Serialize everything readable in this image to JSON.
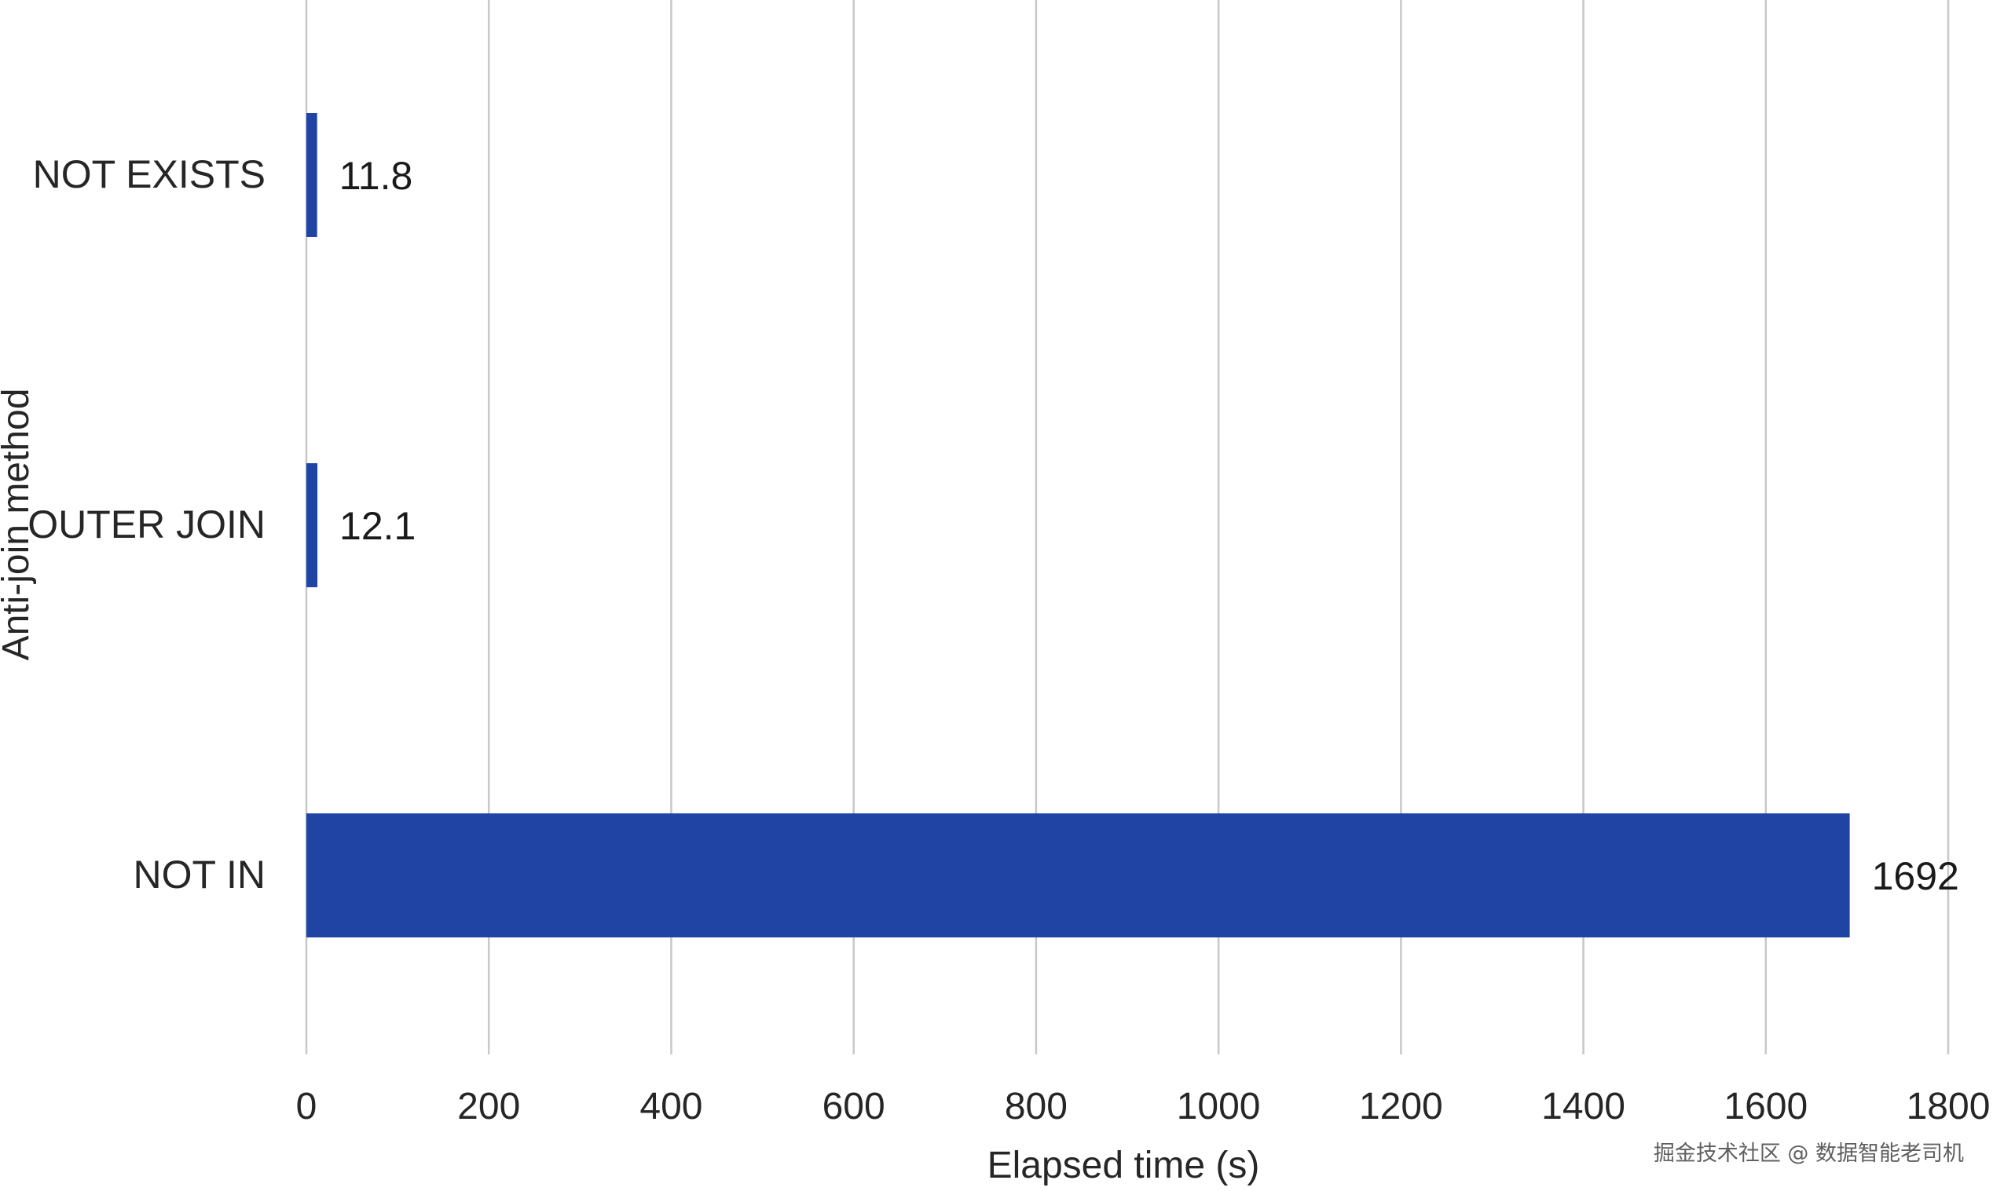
{
  "chart_data": {
    "type": "bar",
    "orientation": "horizontal",
    "categories": [
      "NOT EXISTS",
      "OUTER JOIN",
      "NOT IN"
    ],
    "values": [
      11.8,
      12.1,
      1692
    ],
    "data_labels": [
      "11.8",
      "12.1",
      "1692"
    ],
    "xlabel": "Elapsed time (s)",
    "ylabel": "Anti-join method",
    "xlim": [
      0,
      1800
    ],
    "x_ticks": [
      0,
      200,
      400,
      600,
      800,
      1000,
      1200,
      1400,
      1600,
      1800
    ],
    "x_tick_labels": [
      "0",
      "200",
      "400",
      "600",
      "800",
      "1000",
      "1200",
      "1400",
      "1600",
      "1800"
    ],
    "grid": "vertical",
    "legend": "none",
    "bar_color": "#1f44a3",
    "grid_color": "#c8c8c8"
  },
  "watermark": "掘金技术社区 @ 数据智能老司机"
}
